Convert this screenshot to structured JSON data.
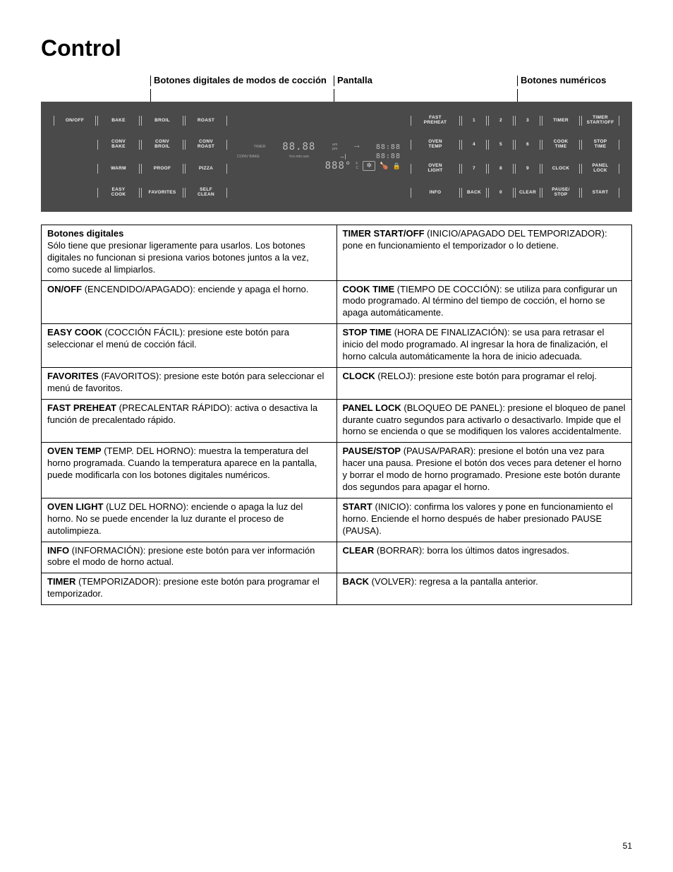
{
  "page_title": "Control",
  "page_number": "51",
  "callouts": {
    "modes": "Botones digitales de modos de cocción",
    "display": "Pantalla",
    "numeric": "Botones numéricos"
  },
  "panel": {
    "col_a": [
      "ON/OFF",
      "",
      "",
      ""
    ],
    "col_b": [
      "BAKE",
      "CONV\nBAKE",
      "WARM",
      "EASY\nCOOK"
    ],
    "col_c": [
      "BROIL",
      "CONV\nBROIL",
      "PROOF",
      "FAVORITES"
    ],
    "col_d": [
      "ROAST",
      "CONV\nROAST",
      "PIZZA",
      "SELF\nCLEAN"
    ],
    "conv_bake_label": "CONV BAKE",
    "timer_label": "TIMER",
    "col_f": [
      "FAST\nPREHEAT",
      "OVEN\nTEMP",
      "OVEN\nLIGHT",
      "INFO"
    ],
    "num_g": [
      "1",
      "4",
      "7",
      "BACK"
    ],
    "num_h": [
      "2",
      "5",
      "8",
      "0"
    ],
    "num_i": [
      "3",
      "6",
      "9",
      "CLEAR"
    ],
    "col_j": [
      "TIMER",
      "COOK\nTIME",
      "CLOCK",
      "PAUSE/\nSTOP"
    ],
    "col_k": [
      "TIMER\nSTART/OFF",
      "STOP\nTIME",
      "PANEL\nLOCK",
      "START"
    ]
  },
  "table": {
    "left": [
      {
        "iskey": true,
        "key": "Botones digitales",
        "text": "Sólo tiene que presionar ligeramente para usarlos. Los botones digitales no funcionan si presiona varios botones juntos a la vez, como sucede al limpiarlos."
      },
      {
        "key": "ON/OFF",
        "paren": " (ENCENDIDO/APAGADO): ",
        "text": "enciende y apaga el horno."
      },
      {
        "key": "EASY COOK",
        "paren": " (COCCIÓN FÁCIL): ",
        "text": "presione este botón para seleccionar el menú de cocción fácil."
      },
      {
        "key": "FAVORITES",
        "paren": " (FAVORITOS): ",
        "text": "presione este botón para seleccionar el menú de favoritos."
      },
      {
        "key": "FAST PREHEAT",
        "paren": " (PRECALENTAR RÁPIDO): ",
        "text": "activa o desactiva la función de precalentado rápido."
      },
      {
        "key": "OVEN TEMP",
        "paren": " (TEMP. DEL HORNO): ",
        "text": "muestra la temperatura del horno programada. Cuando la temperatura aparece en la pantalla, puede modificarla con los botones digitales numéricos."
      },
      {
        "key": "OVEN LIGHT",
        "paren": " (LUZ DEL HORNO): ",
        "text": "enciende o apaga la luz del horno. No se puede encender la luz durante el proceso de autolimpieza."
      },
      {
        "key": "INFO",
        "paren": " (INFORMACIÓN): ",
        "text": "presione este botón para ver información sobre el modo de horno actual."
      },
      {
        "key": "TIMER",
        "paren": " (TEMPORIZADOR): ",
        "text": "presione este botón para programar el temporizador."
      }
    ],
    "right": [
      {
        "key": "TIMER START/OFF",
        "paren": " (INICIO/APAGADO DEL TEMPORIZADOR): ",
        "text": "pone en funcionamiento el temporizador o lo detiene."
      },
      {
        "key": "COOK TIME",
        "paren": " (TIEMPO DE COCCIÓN): ",
        "text": "se utiliza para configurar un modo programado. Al término del tiempo de cocción, el horno se apaga automáticamente."
      },
      {
        "key": "STOP TIME",
        "paren": " (HORA DE FINALIZACIÓN): ",
        "text": "se usa para retrasar el inicio del modo programado. Al ingresar la hora de finalización, el horno calcula automáticamente la hora de inicio adecuada."
      },
      {
        "key": "CLOCK",
        "paren": " (RELOJ): ",
        "text": "presione este botón para programar el reloj."
      },
      {
        "key": "PANEL LOCK",
        "paren": " (BLOQUEO DE PANEL): ",
        "text": "presione el bloqueo de panel durante cuatro segundos para activarlo o desactivarlo. Impide que el horno se encienda o que se modifiquen los valores accidentalmente."
      },
      {
        "key": "PAUSE/STOP",
        "paren": " (PAUSA/PARAR): ",
        "text": "presione el botón una vez para hacer una pausa. Presione el botón dos veces para detener el horno y borrar el modo de horno programado. Presione este botón durante dos segundos para apagar el horno."
      },
      {
        "key": "START",
        "paren": " (INICIO): ",
        "text": "confirma los valores y pone en funcionamiento el horno. Enciende el horno después de haber presionado PAUSE (PAUSA)."
      },
      {
        "key": "CLEAR",
        "paren": " (BORRAR): ",
        "text": "borra los últimos datos ingresados."
      },
      {
        "key": "BACK",
        "paren": " (VOLVER): ",
        "text": "regresa a la pantalla anterior."
      }
    ]
  }
}
